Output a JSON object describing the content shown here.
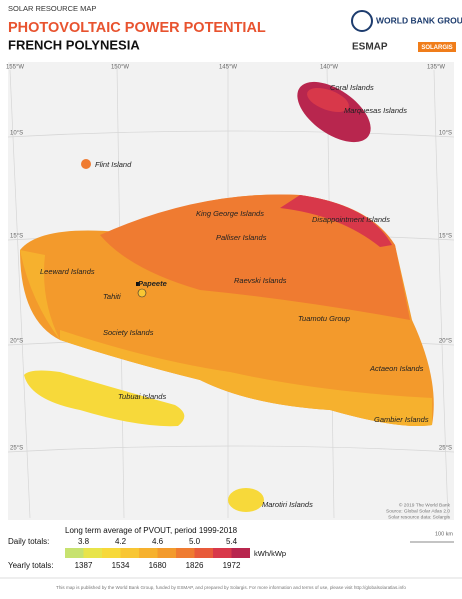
{
  "header": {
    "kicker": "SOLAR RESOURCE MAP",
    "title": "PHOTOVOLTAIC POWER POTENTIAL",
    "subtitle": "FRENCH POLYNESIA"
  },
  "logos": {
    "world_bank": "WORLD BANK GROUP",
    "esmap": "ESMAP",
    "solargis": "SOLARGIS"
  },
  "map": {
    "longitudes": [
      "155°W",
      "150°W",
      "145°W",
      "140°W",
      "135°W"
    ],
    "latitudes": [
      "10°S",
      "15°S",
      "20°S",
      "25°S"
    ],
    "places": [
      "Coral Islands",
      "Marquesas Islands",
      "Flint Island",
      "King George Islands",
      "Disappointment Islands",
      "Palliser Islands",
      "Leeward Islands",
      "Papeete",
      "Tahiti",
      "Raevski Islands",
      "Tuamotu Group",
      "Society Islands",
      "Actaeon Islands",
      "Tubuai Islands",
      "Gambier Islands",
      "Marotiri Islands"
    ],
    "credits": [
      "© 2019 The World Bank",
      "Source: Global Solar Atlas 2.0",
      "Solar resource data: Solargis"
    ],
    "scale": "100 km"
  },
  "legend": {
    "title": "Long term average of PVOUT, period 1999-2018",
    "daily_label": "Daily totals:",
    "daily_ticks": [
      "3.8",
      "4.2",
      "4.6",
      "5.0",
      "5.4"
    ],
    "unit": "kWh/kWp",
    "yearly_label": "Yearly totals:",
    "yearly_ticks": [
      "1387",
      "1534",
      "1680",
      "1826",
      "1972"
    ],
    "colors": [
      "#c7e26f",
      "#e8e44a",
      "#f7d93a",
      "#f8c634",
      "#f6b12e",
      "#f39a2c",
      "#ef7b31",
      "#e85a3a",
      "#d8384a",
      "#b8264e"
    ]
  },
  "footer": "This map is published by the World Bank Group, funded by ESMAP, and prepared by Solargis. For more information and terms of use, please visit http://globalsolaratlas.info"
}
